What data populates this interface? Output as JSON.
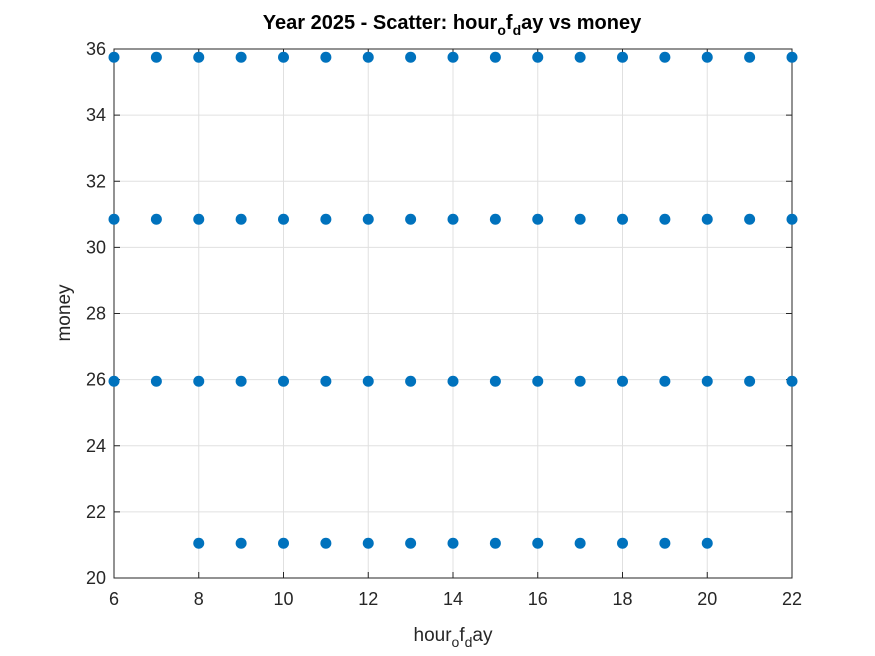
{
  "chart_data": {
    "type": "scatter",
    "title": {
      "main": "Year 2025 - Scatter: hour",
      "sub1": "o",
      "mid": "f",
      "sub2": "d",
      "end": "ay vs money"
    },
    "xlabel": {
      "main": "hour",
      "sub1": "o",
      "mid": "f",
      "sub2": "d",
      "end": "ay"
    },
    "ylabel": "money",
    "xlim": [
      6,
      22
    ],
    "ylim": [
      20,
      36
    ],
    "xticks": [
      6,
      8,
      10,
      12,
      14,
      16,
      18,
      20,
      22
    ],
    "yticks": [
      20,
      22,
      24,
      26,
      28,
      30,
      32,
      34,
      36
    ],
    "grid": true,
    "marker_color": "#0072BD",
    "series": [
      {
        "x": [
          6,
          7,
          8,
          9,
          10,
          11,
          12,
          13,
          14,
          15,
          16,
          17,
          18,
          19,
          20,
          21,
          22
        ],
        "y": [
          35.75,
          35.75,
          35.75,
          35.75,
          35.75,
          35.75,
          35.75,
          35.75,
          35.75,
          35.75,
          35.75,
          35.75,
          35.75,
          35.75,
          35.75,
          35.75,
          35.75
        ]
      },
      {
        "x": [
          6,
          7,
          8,
          9,
          10,
          11,
          12,
          13,
          14,
          15,
          16,
          17,
          18,
          19,
          20,
          21,
          22
        ],
        "y": [
          30.85,
          30.85,
          30.85,
          30.85,
          30.85,
          30.85,
          30.85,
          30.85,
          30.85,
          30.85,
          30.85,
          30.85,
          30.85,
          30.85,
          30.85,
          30.85,
          30.85
        ]
      },
      {
        "x": [
          6,
          7,
          8,
          9,
          10,
          11,
          12,
          13,
          14,
          15,
          16,
          17,
          18,
          19,
          20,
          21,
          22
        ],
        "y": [
          25.95,
          25.95,
          25.95,
          25.95,
          25.95,
          25.95,
          25.95,
          25.95,
          25.95,
          25.95,
          25.95,
          25.95,
          25.95,
          25.95,
          25.95,
          25.95,
          25.95
        ]
      },
      {
        "x": [
          8,
          9,
          10,
          11,
          12,
          13,
          14,
          15,
          16,
          17,
          18,
          19,
          20
        ],
        "y": [
          21.05,
          21.05,
          21.05,
          21.05,
          21.05,
          21.05,
          21.05,
          21.05,
          21.05,
          21.05,
          21.05,
          21.05,
          21.05
        ]
      }
    ]
  }
}
